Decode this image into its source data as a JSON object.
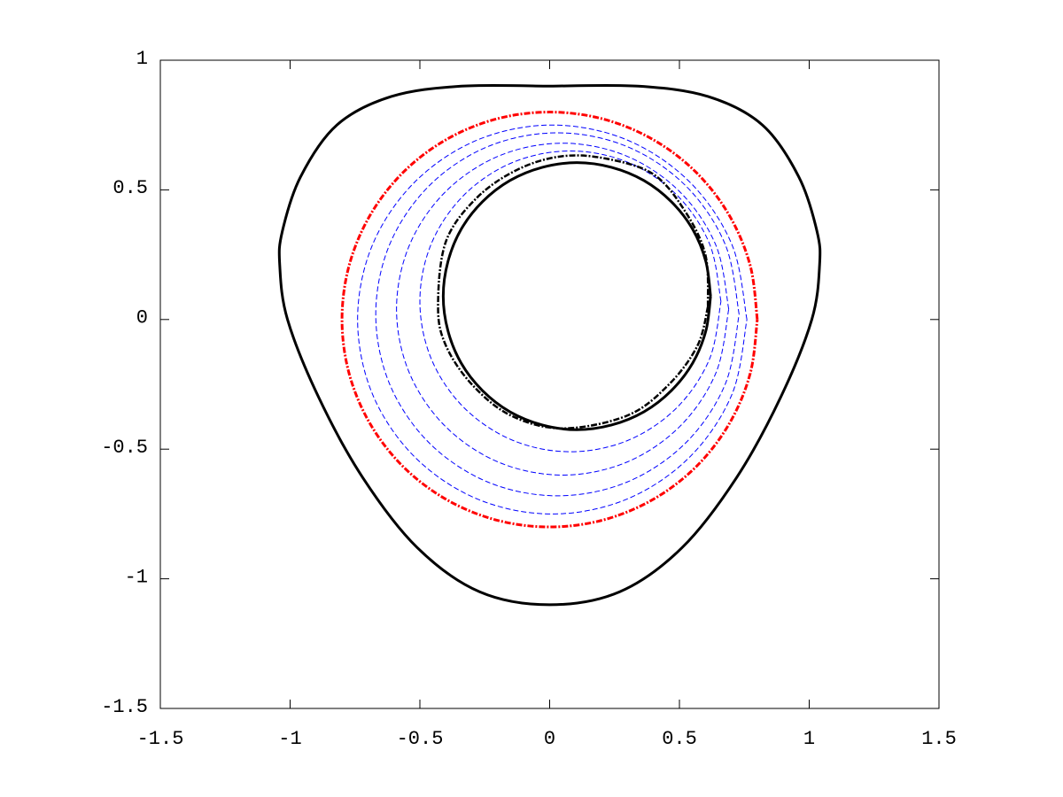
{
  "chart_data": {
    "type": "line",
    "xlim": [
      -1.5,
      1.5
    ],
    "ylim": [
      -1.5,
      1
    ],
    "xticks": [
      -1.5,
      -1,
      -0.5,
      0,
      0.5,
      1,
      1.5
    ],
    "yticks": [
      -1.5,
      -1,
      -0.5,
      0,
      0.5,
      1
    ],
    "grid": false,
    "series": [
      {
        "color": "#000000",
        "style": "solid",
        "width": 3,
        "x": [
          0,
          0.34,
          0.61,
          0.82,
          0.96,
          1.03,
          1.04,
          1.01,
          0.89,
          0.72,
          0.51,
          0.27,
          0,
          -0.27,
          -0.51,
          -0.72,
          -0.89,
          -1.01,
          -1.04,
          -1.03,
          -0.96,
          -0.82,
          -0.61,
          -0.34,
          0
        ],
        "values": [
          0.9,
          0.9,
          0.86,
          0.75,
          0.55,
          0.34,
          0.21,
          0,
          -0.3,
          -0.61,
          -0.88,
          -1.05,
          -1.1,
          -1.05,
          -0.88,
          -0.61,
          -0.3,
          0,
          0.21,
          0.34,
          0.55,
          0.75,
          0.86,
          0.9,
          0.9
        ]
      },
      {
        "color": "#ff0000",
        "style": "dashdot",
        "width": 3,
        "x": [
          0.8,
          0.773,
          0.693,
          0.566,
          0.4,
          0.207,
          0,
          -0.207,
          -0.4,
          -0.566,
          -0.693,
          -0.773,
          -0.8,
          -0.773,
          -0.693,
          -0.566,
          -0.4,
          -0.207,
          0,
          0.207,
          0.4,
          0.566,
          0.693,
          0.773,
          0.8
        ],
        "values": [
          0,
          0.207,
          0.4,
          0.566,
          0.693,
          0.773,
          0.8,
          0.773,
          0.693,
          0.566,
          0.4,
          0.207,
          0,
          -0.207,
          -0.4,
          -0.566,
          -0.693,
          -0.773,
          -0.8,
          -0.773,
          -0.693,
          -0.566,
          -0.4,
          -0.207,
          0
        ]
      },
      {
        "color": "#0000ff",
        "style": "dashed",
        "width": 1,
        "x": [
          0.66,
          0.616,
          0.49,
          0.302,
          0.08,
          -0.142,
          -0.33,
          -0.456,
          -0.5,
          -0.456,
          -0.33,
          -0.142,
          0.08,
          0.302,
          0.49,
          0.616,
          0.66
        ],
        "values": [
          0.07,
          0.292,
          0.48,
          0.606,
          0.65,
          0.606,
          0.48,
          0.292,
          0.07,
          -0.152,
          -0.34,
          -0.466,
          -0.51,
          -0.466,
          -0.34,
          -0.152,
          0.07
        ]
      },
      {
        "color": "#0000ff",
        "style": "dashed",
        "width": 1,
        "x": [
          0.69,
          0.641,
          0.502,
          0.295,
          0.05,
          -0.195,
          -0.402,
          -0.541,
          -0.59,
          -0.541,
          -0.402,
          -0.195,
          0.05,
          0.295,
          0.502,
          0.641,
          0.69
        ],
        "values": [
          0.04,
          0.285,
          0.492,
          0.631,
          0.68,
          0.631,
          0.492,
          0.285,
          0.04,
          -0.205,
          -0.412,
          -0.551,
          -0.6,
          -0.551,
          -0.412,
          -0.205,
          0.04
        ]
      },
      {
        "color": "#0000ff",
        "style": "dashed",
        "width": 1,
        "x": [
          0.73,
          0.677,
          0.525,
          0.298,
          0.03,
          -0.238,
          -0.465,
          -0.617,
          -0.67,
          -0.617,
          -0.465,
          -0.238,
          0.03,
          0.298,
          0.525,
          0.677,
          0.73
        ],
        "values": [
          0.02,
          0.288,
          0.515,
          0.667,
          0.72,
          0.667,
          0.515,
          0.288,
          0.02,
          -0.248,
          -0.475,
          -0.627,
          -0.68,
          -0.627,
          -0.475,
          -0.248,
          0.02
        ]
      },
      {
        "color": "#0000ff",
        "style": "dashed",
        "width": 1,
        "x": [
          0.76,
          0.703,
          0.54,
          0.297,
          0.01,
          -0.277,
          -0.52,
          -0.683,
          -0.74,
          -0.683,
          -0.52,
          -0.277,
          0.01,
          0.297,
          0.54,
          0.703,
          0.76
        ],
        "values": [
          0,
          0.287,
          0.53,
          0.693,
          0.75,
          0.693,
          0.53,
          0.287,
          0,
          -0.287,
          -0.53,
          -0.693,
          -0.75,
          -0.693,
          -0.53,
          -0.287,
          0
        ]
      },
      {
        "color": "#000000",
        "style": "dashdot",
        "width": 2.5,
        "x": [
          0.61,
          0.6,
          0.52,
          0.4,
          0.22,
          0.05,
          -0.12,
          -0.28,
          -0.4,
          -0.43,
          -0.4,
          -0.3,
          -0.15,
          0.05,
          0.3,
          0.46,
          0.57,
          0.61
        ],
        "values": [
          0.05,
          0.25,
          0.42,
          0.56,
          0.62,
          0.63,
          0.58,
          0.47,
          0.3,
          0.05,
          -0.1,
          -0.25,
          -0.37,
          -0.42,
          -0.37,
          -0.25,
          -0.1,
          0.05
        ]
      },
      {
        "color": "#000000",
        "style": "solid",
        "width": 3,
        "x": [
          0.62,
          0.602,
          0.551,
          0.469,
          0.363,
          0.238,
          0.105,
          -0.028,
          -0.153,
          -0.259,
          -0.341,
          -0.392,
          -0.41,
          -0.392,
          -0.341,
          -0.259,
          -0.153,
          -0.028,
          0.105,
          0.238,
          0.363,
          0.469,
          0.551,
          0.602,
          0.62
        ],
        "values": [
          0.09,
          0.223,
          0.348,
          0.454,
          0.536,
          0.587,
          0.605,
          0.587,
          0.536,
          0.454,
          0.348,
          0.223,
          0.09,
          -0.043,
          -0.168,
          -0.274,
          -0.356,
          -0.407,
          -0.425,
          -0.407,
          -0.356,
          -0.274,
          -0.168,
          -0.043,
          0.09
        ]
      }
    ]
  }
}
